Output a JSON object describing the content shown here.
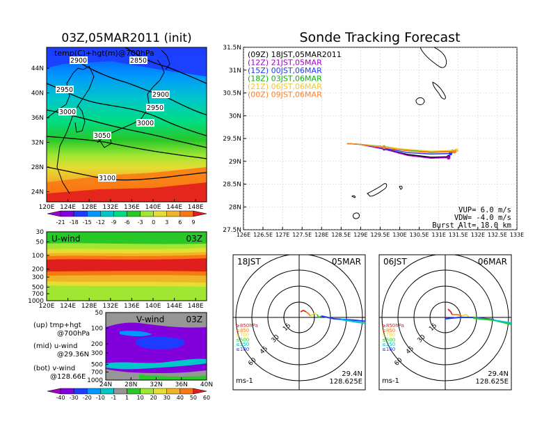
{
  "left_title": "03Z,05MAR2011 (init)",
  "right_title": "Sonde Tracking Forecast",
  "map_panel": {
    "label": "temp(C)+hgt(m)@700hPa",
    "contour_labels": [
      "2850",
      "2900",
      "2900",
      "2950",
      "2950",
      "3000",
      "3000",
      "3050",
      "3100"
    ],
    "lat_ticks": [
      "44N",
      "40N",
      "36N",
      "32N",
      "28N",
      "24N"
    ],
    "lon_ticks": [
      "120E",
      "124E",
      "128E",
      "132E",
      "136E",
      "140E",
      "144E",
      "148E"
    ]
  },
  "temp_colorbar": {
    "labels": [
      "-21",
      "-18",
      "-15",
      "-12",
      "-9",
      "-6",
      "-3",
      "0",
      "3",
      "6",
      "9"
    ],
    "colors": [
      "#a000c8",
      "#8200dc",
      "#1e3cff",
      "#0096ff",
      "#00c8c8",
      "#00dc82",
      "#28c828",
      "#a0e632",
      "#e6dc32",
      "#f0b428",
      "#fa7814",
      "#e11e1e"
    ]
  },
  "u_panel": {
    "label": "U-wind",
    "time": "03Z",
    "p_ticks": [
      "30",
      "50",
      "100",
      "200",
      "300",
      "500",
      "700",
      "1000"
    ],
    "lon_ticks": [
      "120E",
      "124E",
      "128E",
      "132E",
      "136E",
      "140E",
      "144E",
      "148E"
    ]
  },
  "v_panel": {
    "label": "V-wind",
    "time": "03Z",
    "p_ticks": [
      "50",
      "100",
      "200",
      "300",
      "500",
      "700",
      "1000"
    ],
    "lat_ticks": [
      "24N",
      "28N",
      "32N",
      "36N",
      "40N"
    ]
  },
  "wind_colorbar": {
    "labels": [
      "-40",
      "-30",
      "-20",
      "-10",
      "-1",
      "1",
      "10",
      "20",
      "30",
      "40",
      "50",
      "60"
    ],
    "colors": [
      "#a000c8",
      "#8200dc",
      "#1e3cff",
      "#0096ff",
      "#00c8c8",
      "#969696",
      "#28c828",
      "#a0e632",
      "#e6dc32",
      "#f0b428",
      "#fa7814",
      "#e11e1e"
    ]
  },
  "legend_notes": [
    {
      "head": "(up) tmp+hgt",
      "sub": "@700hPa"
    },
    {
      "head": "(mid) u-wind",
      "sub": "@29.36N"
    },
    {
      "head": "(bot) v-wind",
      "sub": "@128.66E"
    }
  ],
  "track_panel": {
    "legend": [
      {
        "text": "(09Z) 18JST,05MAR2011",
        "color": "#000000"
      },
      {
        "text": "(12Z) 21JST,05MAR",
        "color": "#a000c8"
      },
      {
        "text": "(15Z) 00JST,06MAR",
        "color": "#1e3cff"
      },
      {
        "text": "(18Z) 03JST,06MAR",
        "color": "#00b400"
      },
      {
        "text": "(21Z) 06JST,06MAR",
        "color": "#f0c828"
      },
      {
        "text": "(00Z) 09JST,06MAR",
        "color": "#fa8228"
      }
    ],
    "lat_ticks": [
      "31.5N",
      "31N",
      "30.5N",
      "30N",
      "29.5N",
      "29N",
      "28.5N",
      "28N",
      "27.5N"
    ],
    "lon_ticks": [
      "126E",
      "126.5E",
      "127E",
      "127.5E",
      "128E",
      "128.5E",
      "129E",
      "129.5E",
      "130E",
      "130.5E",
      "131E",
      "131.5E",
      "132E",
      "132.5E",
      "133E"
    ],
    "vup": "VUP= 6.0 m/s",
    "vdw": "VDW= -4.0 m/s",
    "burst": "Burst Alt= 18.0 km"
  },
  "hodo_left": {
    "left": "18JST",
    "right": "05MAR",
    "ring_labels": [
      "15",
      "30",
      "45",
      "60"
    ],
    "levels": [
      "≥850hPa",
      "≤850",
      "≤700",
      "≤500",
      "≤250",
      "≤100"
    ],
    "units": "ms-1",
    "lat": "29.4N",
    "lon": "128.625E"
  },
  "hodo_right": {
    "left": "06JST",
    "right": "06MAR",
    "ring_labels": [
      "15",
      "30",
      "45",
      "60"
    ],
    "levels": [
      "≥850hPa",
      "≤850",
      "≤700",
      "≤500",
      "≤250",
      "≤100"
    ],
    "units": "ms-1",
    "lat": "29.4N",
    "lon": "128.625E"
  },
  "chart_data": [
    {
      "type": "line",
      "title": "Sonde Tracking Forecast",
      "xlabel": "",
      "ylabel": "",
      "xlim": [
        126,
        133
      ],
      "ylim": [
        27.5,
        31.5
      ],
      "series": [
        {
          "name": "(09Z) 18JST,05MAR2011",
          "x": [
            128.65,
            129.0,
            129.6,
            130.2,
            130.8,
            131.25
          ],
          "y": [
            29.39,
            29.37,
            29.27,
            29.15,
            29.09,
            29.1
          ]
        },
        {
          "name": "(12Z) 21JST,05MAR",
          "x": [
            128.65,
            129.0,
            129.6,
            130.2,
            130.8,
            131.25
          ],
          "y": [
            29.39,
            29.37,
            29.27,
            29.13,
            29.07,
            29.08
          ]
        },
        {
          "name": "(15Z) 00JST,06MAR",
          "x": [
            128.65,
            129.0,
            129.6,
            130.2,
            130.8,
            131.3
          ],
          "y": [
            29.39,
            29.37,
            29.29,
            29.19,
            29.16,
            29.17
          ]
        },
        {
          "name": "(18Z) 03JST,06MAR",
          "x": [
            128.65,
            129.0,
            129.6,
            130.2,
            130.8,
            131.35
          ],
          "y": [
            29.39,
            29.37,
            29.32,
            29.25,
            29.21,
            29.22
          ]
        },
        {
          "name": "(21Z) 06JST,06MAR",
          "x": [
            128.65,
            129.0,
            129.6,
            130.2,
            130.8,
            131.45
          ],
          "y": [
            29.39,
            29.37,
            29.31,
            29.26,
            29.22,
            29.24
          ]
        },
        {
          "name": "(00Z) 09JST,06MAR",
          "x": [
            128.65,
            129.0,
            129.6,
            130.2,
            130.8,
            131.4
          ],
          "y": [
            29.39,
            29.37,
            29.3,
            29.23,
            29.19,
            29.21
          ]
        }
      ],
      "annotations": [
        "VUP= 6.0 m/s",
        "VDW= -4.0 m/s",
        "Burst Alt= 18.0 km"
      ]
    },
    {
      "type": "heatmap",
      "title": "temp(C)+hgt(m)@700hPa",
      "x_range": [
        120,
        150
      ],
      "y_range": [
        22,
        47
      ],
      "colorbar": [
        -21,
        -18,
        -15,
        -12,
        -9,
        -6,
        -3,
        0,
        3,
        6,
        9
      ],
      "contours": [
        2850,
        2900,
        2950,
        3000,
        3050,
        3100
      ]
    },
    {
      "type": "heatmap",
      "title": "U-wind",
      "x_range": [
        120,
        150
      ],
      "y_range": [
        1000,
        30
      ],
      "y_scale": "log",
      "colorbar": [
        -40,
        -30,
        -20,
        -10,
        -1,
        1,
        10,
        20,
        30,
        40,
        50,
        60
      ]
    },
    {
      "type": "heatmap",
      "title": "V-wind",
      "x_range": [
        24,
        40
      ],
      "y_range": [
        1000,
        50
      ],
      "y_scale": "log",
      "colorbar": [
        -40,
        -30,
        -20,
        -10,
        -1,
        1,
        10,
        20,
        30,
        40,
        50,
        60
      ]
    }
  ]
}
